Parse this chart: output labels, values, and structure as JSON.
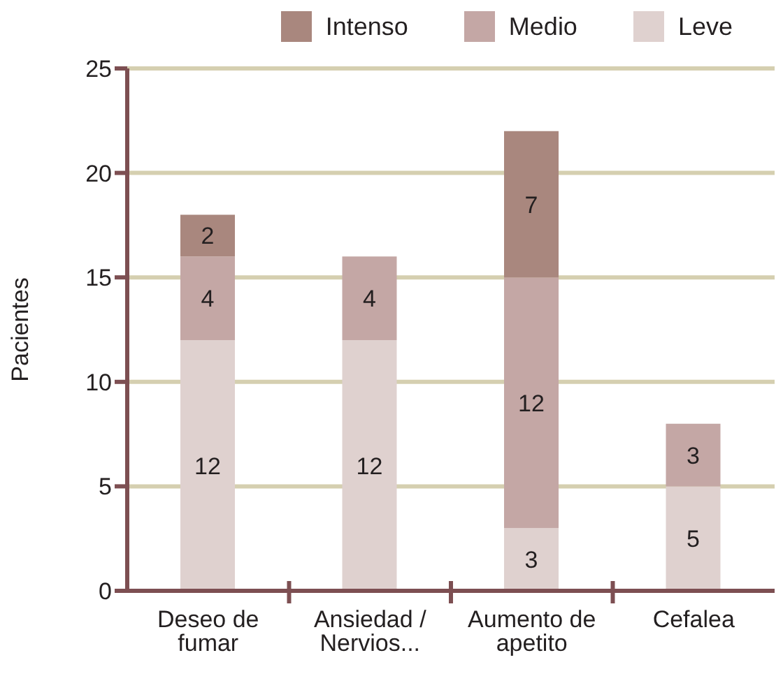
{
  "chart_data": {
    "type": "bar",
    "stacked": true,
    "ylabel": "Pacientes",
    "categories": [
      "Deseo de fumar",
      "Ansiedad / Nervios...",
      "Aumento de apetito",
      "Cefalea"
    ],
    "series": [
      {
        "name": "Leve",
        "color": "#dfd1cf",
        "values": [
          12,
          12,
          3,
          5
        ]
      },
      {
        "name": "Medio",
        "color": "#c4a7a5",
        "values": [
          4,
          4,
          12,
          3
        ]
      },
      {
        "name": "Intenso",
        "color": "#a9877e",
        "values": [
          2,
          null,
          7,
          null
        ]
      }
    ],
    "ylim": [
      0,
      25
    ],
    "yticks": [
      0,
      5,
      10,
      15,
      20,
      25
    ],
    "grid": "y",
    "legend": "top right",
    "data_labels": true
  }
}
